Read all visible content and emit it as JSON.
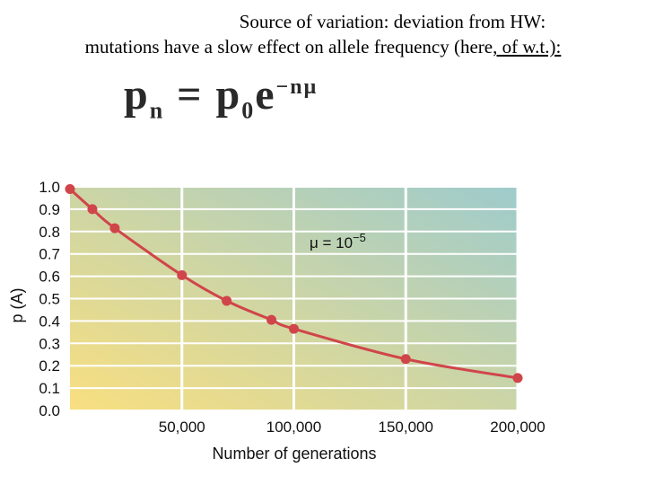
{
  "slide": {
    "title_line1": "Source of variation: deviation from HW:",
    "title_line2_a": "mutations have a slow effect on allele frequency (here",
    "title_line2_b": ", of w.t.):",
    "formula": {
      "lhs": "p",
      "lhs_sub": "n",
      "eq": "=",
      "rhs": "p",
      "rhs_sub": "0",
      "e": "e",
      "exp": "−nμ"
    }
  },
  "chart_data": {
    "type": "line",
    "title": "",
    "xlabel": "Number of generations",
    "ylabel": "p (A)",
    "xlim": [
      0,
      200000
    ],
    "ylim": [
      0,
      1.0
    ],
    "x_ticks": [
      50000,
      100000,
      150000,
      200000
    ],
    "x_tick_labels": [
      "50,000",
      "100,000",
      "150,000",
      "200,000"
    ],
    "y_ticks": [
      0,
      0.1,
      0.2,
      0.3,
      0.4,
      0.5,
      0.6,
      0.7,
      0.8,
      0.9,
      1.0
    ],
    "y_tick_labels": [
      "0.0",
      "0.1",
      "0.2",
      "0.3",
      "0.4",
      "0.5",
      "0.6",
      "0.7",
      "0.8",
      "0.9",
      "1.0"
    ],
    "annotation": "μ = 10",
    "annotation_exp": "−5",
    "series": [
      {
        "name": "p(A)",
        "color": "#d0454a",
        "x": [
          0,
          10000,
          20000,
          50000,
          70000,
          90000,
          100000,
          150000,
          200000
        ],
        "y": [
          0.99,
          0.9,
          0.815,
          0.605,
          0.49,
          0.405,
          0.365,
          0.23,
          0.145
        ]
      }
    ],
    "grid": true,
    "background_gradient": [
      "#f9df80",
      "#9ecbcc"
    ]
  }
}
